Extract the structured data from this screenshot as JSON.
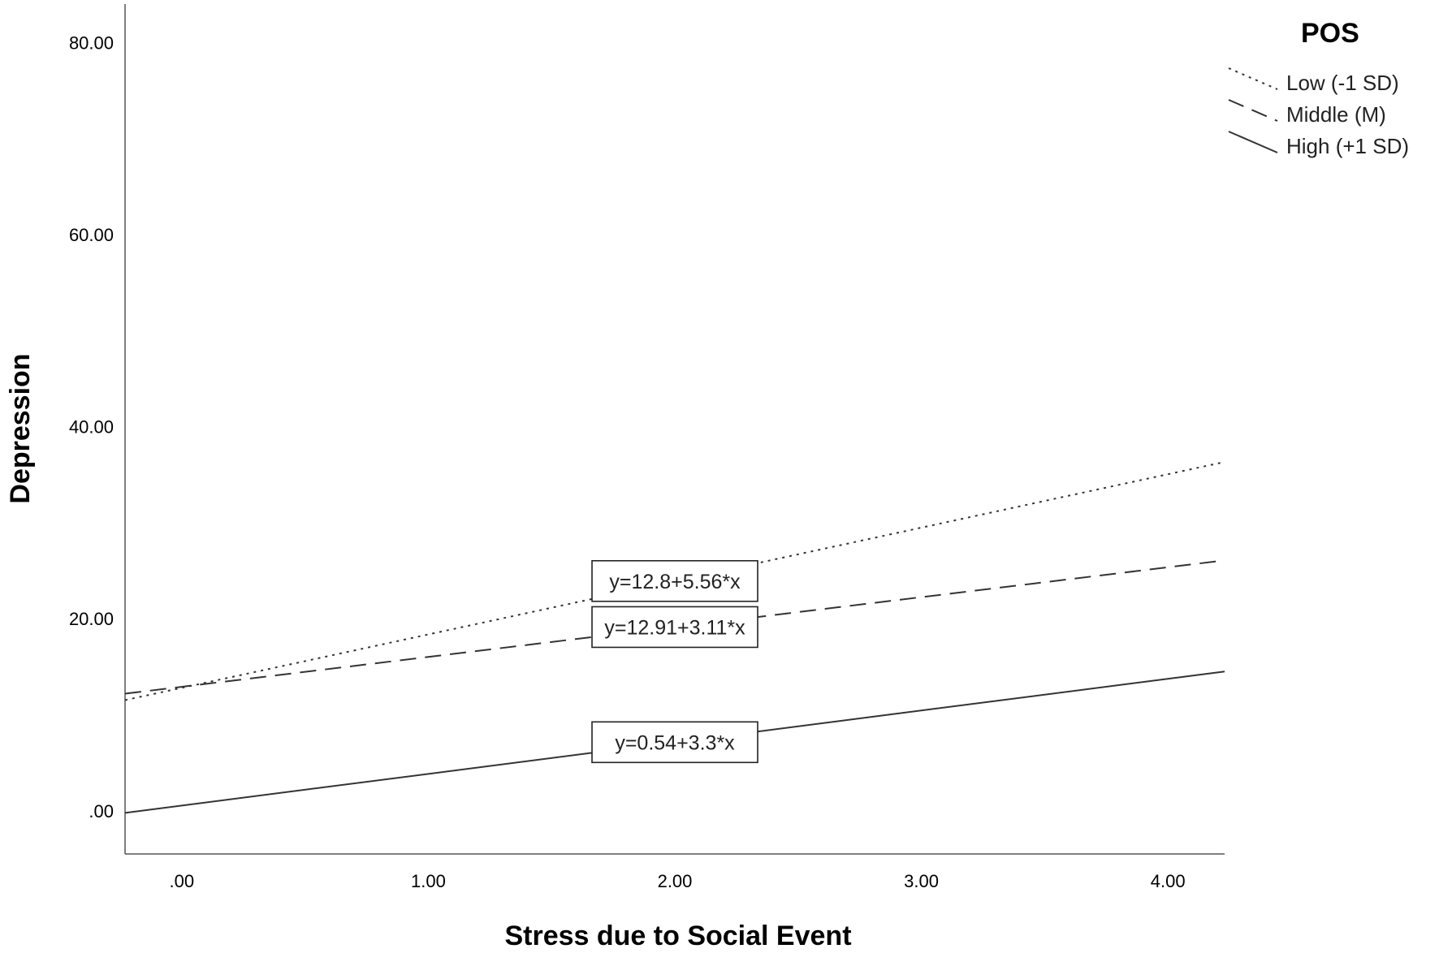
{
  "chart_data": {
    "type": "line",
    "xlabel": "Stress due to Social Event",
    "ylabel": "Depression",
    "xlim": [
      -0.23,
      4.23
    ],
    "ylim": [
      -4.5,
      84
    ],
    "x_ticks": [
      0,
      1,
      2,
      3,
      4
    ],
    "x_tick_labels": [
      ".00",
      "1.00",
      "2.00",
      "3.00",
      "4.00"
    ],
    "y_ticks": [
      0,
      20,
      40,
      60,
      80
    ],
    "y_tick_labels": [
      ".00",
      "20.00",
      "40.00",
      "60.00",
      "80.00"
    ],
    "grid": false,
    "legend": {
      "title": "POS",
      "placement": "top-right"
    },
    "series": [
      {
        "name": "Low (-1 SD)",
        "style": "dotted",
        "intercept": 12.8,
        "slope": 5.56,
        "x": [
          -0.23,
          4.23
        ],
        "y": [
          11.52,
          36.32
        ],
        "equation": "y=12.8+5.56*x",
        "label_x": 2.0
      },
      {
        "name": "Middle (M)",
        "style": "dashed",
        "intercept": 12.91,
        "slope": 3.11,
        "x": [
          -0.23,
          4.23
        ],
        "y": [
          12.19,
          26.07
        ],
        "equation": "y=12.91+3.11*x",
        "label_x": 2.0
      },
      {
        "name": "High (+1 SD)",
        "style": "solid",
        "intercept": 0.54,
        "slope": 3.3,
        "x": [
          -0.23,
          4.23
        ],
        "y": [
          -0.22,
          14.5
        ],
        "equation": "y=0.54+3.3*x",
        "label_x": 2.0
      }
    ],
    "colors": {
      "line": "#333333",
      "axis": "#555555",
      "text": "#000000"
    }
  }
}
